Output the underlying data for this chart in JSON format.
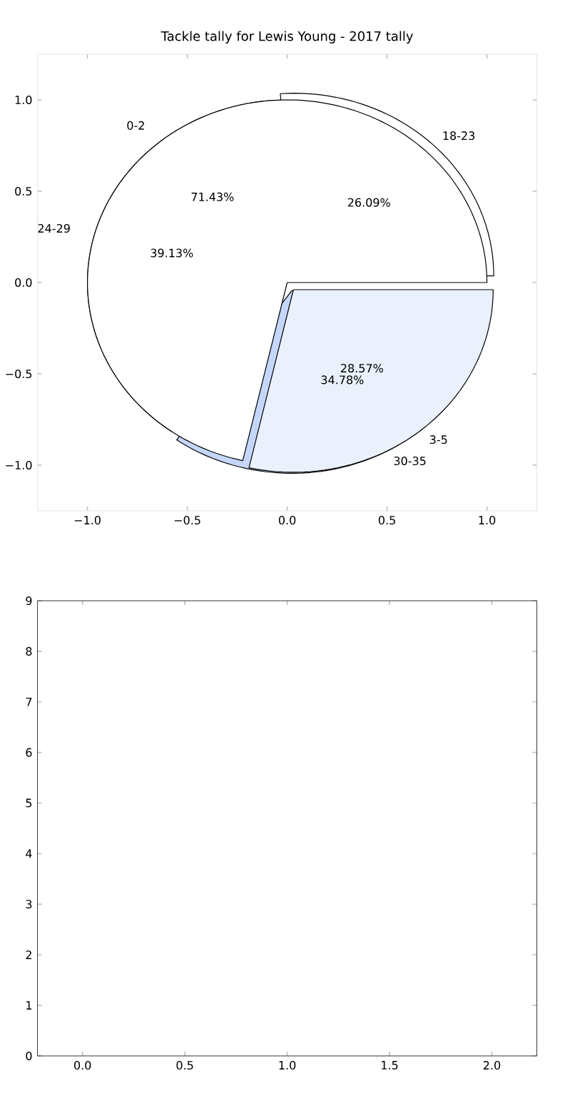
{
  "chart_data": [
    {
      "type": "scatter",
      "title": "Tackle tally for Lewis Young - 2017 tally",
      "xlim": [
        -1.25,
        1.25
      ],
      "ylim": [
        -1.25,
        1.25
      ],
      "xticks": [
        {
          "value": -1.0,
          "label": "−1.0"
        },
        {
          "value": -0.5,
          "label": "−0.5"
        },
        {
          "value": 0.0,
          "label": "0.0"
        },
        {
          "value": 0.5,
          "label": "0.5"
        },
        {
          "value": 1.0,
          "label": "1.0"
        }
      ],
      "yticks": [
        {
          "value": -1.0,
          "label": "−1.0"
        },
        {
          "value": -0.5,
          "label": "−0.5"
        },
        {
          "value": 0.0,
          "label": "0.0"
        },
        {
          "value": 0.5,
          "label": "0.5"
        },
        {
          "value": 1.0,
          "label": "1.0"
        }
      ]
    },
    {
      "type": "pie",
      "categories": [
        "0-2",
        "3-5"
      ],
      "values": [
        71.43,
        28.57
      ],
      "value_labels": [
        "71.43%",
        "28.57%"
      ],
      "colors": [
        "#ffffff",
        "#eaf1fd"
      ]
    },
    {
      "type": "pie",
      "categories": [
        "18-23",
        "24-29",
        "30-35"
      ],
      "values": [
        26.09,
        39.13,
        34.78
      ],
      "value_labels": [
        "26.09%",
        "39.13%",
        "34.78%"
      ],
      "colors": [
        "#ffffff",
        "#ffffff",
        "#c4d7fa"
      ]
    },
    {
      "type": "scatter",
      "xlim": [
        -0.22,
        2.22
      ],
      "ylim": [
        0,
        9
      ],
      "xticks": [
        {
          "value": 0.0,
          "label": "0.0"
        },
        {
          "value": 0.5,
          "label": "0.5"
        },
        {
          "value": 1.0,
          "label": "1.0"
        },
        {
          "value": 1.5,
          "label": "1.5"
        },
        {
          "value": 2.0,
          "label": "2.0"
        }
      ],
      "yticks": [
        0,
        1,
        2,
        3,
        4,
        5,
        6,
        7,
        8,
        9
      ]
    }
  ]
}
